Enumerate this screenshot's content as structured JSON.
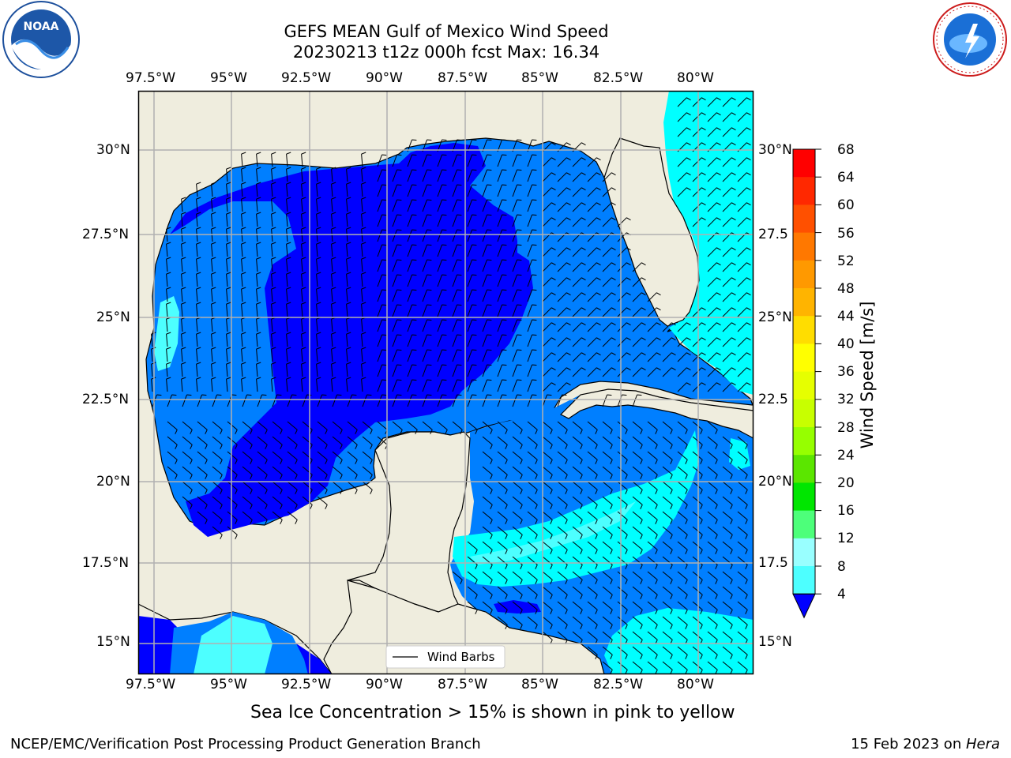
{
  "title": {
    "line1": "GEFS MEAN Gulf of Mexico Wind Speed",
    "line2": "20230213 t12z 000h fcst   Max: 16.34"
  },
  "axes": {
    "lon_labels": [
      "97.5°W",
      "95°W",
      "92.5°W",
      "90°W",
      "87.5°W",
      "85°W",
      "82.5°W",
      "80°W"
    ],
    "lat_labels": [
      "30°N",
      "27.5°N",
      "25°N",
      "22.5°N",
      "20°N",
      "17.5°N",
      "15°N"
    ],
    "lat_labels_right": [
      "30°N",
      "27.5",
      "25°N",
      "22.5",
      "20°N",
      "17.5",
      "15°N"
    ],
    "lon_range": [
      -98,
      -78.2
    ],
    "lat_range": [
      14,
      31.5
    ]
  },
  "legend": {
    "label": "Wind Barbs"
  },
  "colorbar": {
    "label": "Wind Speed [m/s]",
    "ticks": [
      "68",
      "64",
      "60",
      "56",
      "52",
      "48",
      "44",
      "40",
      "36",
      "32",
      "28",
      "24",
      "20",
      "16",
      "12",
      "8",
      "4"
    ],
    "colors": [
      "#ff0000",
      "#ff2800",
      "#ff5000",
      "#ff7800",
      "#ff9900",
      "#ffb400",
      "#ffdd00",
      "#ffff00",
      "#e6ff00",
      "#c8ff00",
      "#96ff00",
      "#5be600",
      "#00e600",
      "#4dff7a",
      "#99ffff",
      "#4dffff",
      "#00ffff",
      "#007fff"
    ],
    "extend_color": "#0000ff"
  },
  "caption": "Sea Ice Concentration > 15% is shown in pink to yellow",
  "footer": {
    "left": "NCEP/EMC/Verification Post Processing Product Generation Branch",
    "right_date": "15 Feb 2023 on ",
    "right_machine": "Hera"
  },
  "logos": {
    "left": {
      "name": "noaa-logo",
      "text": "NOAA"
    },
    "right": {
      "name": "nws-logo",
      "text": "NATIONAL WEATHER SERVICE"
    }
  },
  "colors": {
    "land": "#efedde",
    "speed_4_8": "#007fff",
    "speed_lt_4": "#0000ff",
    "speed_8_12": "#00ffff",
    "speed_12_16": "#4dffff",
    "grid": "#b0b0b0"
  }
}
